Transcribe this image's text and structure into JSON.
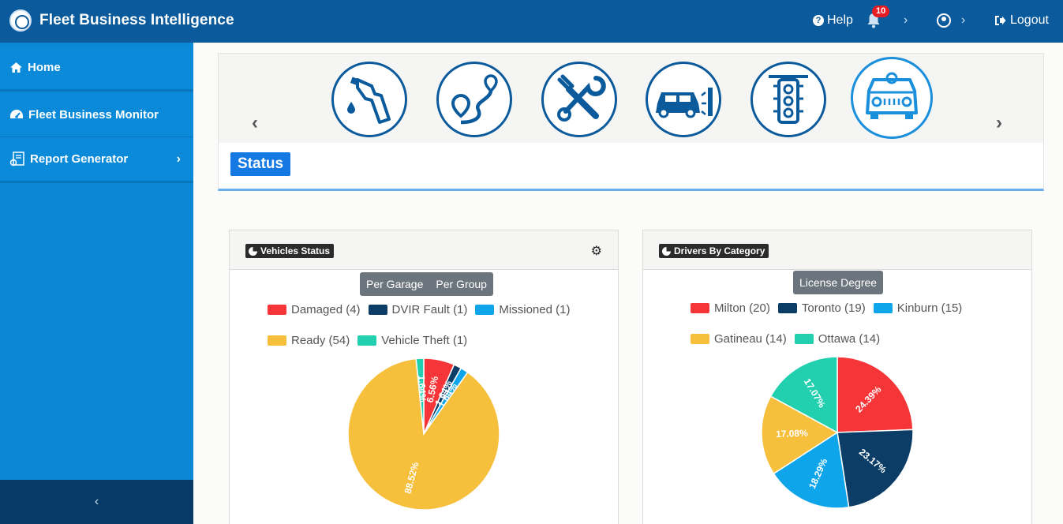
{
  "app": {
    "title": "Fleet Business Intelligence"
  },
  "topbar": {
    "help": "Help",
    "notifications_count": "10",
    "logout": "Logout"
  },
  "sidebar": {
    "items": [
      {
        "label": "Home"
      },
      {
        "label": "Fleet Business Monitor"
      },
      {
        "label": "Report Generator"
      }
    ],
    "collapse_glyph": "‹"
  },
  "carousel": {
    "prev_glyph": "‹",
    "next_glyph": "›",
    "icons": [
      "fuel-pump-icon",
      "route-icon",
      "tools-icon",
      "car-crash-icon",
      "traffic-light-icon",
      "driver-vehicle-icon"
    ],
    "section_label": "Status"
  },
  "vehicles_card": {
    "title": "Vehicles Status",
    "buttons": [
      "Per Garage",
      "Per Group"
    ],
    "legend": [
      {
        "label": "Damaged (4)",
        "color": "#f63538"
      },
      {
        "label": "DVIR Fault (1)",
        "color": "#0b3d66"
      },
      {
        "label": "Missioned (1)",
        "color": "#0ea5ea"
      },
      {
        "label": "Ready (54)",
        "color": "#f6bf3c"
      },
      {
        "label": "Vehicle Theft (1)",
        "color": "#22d0b0"
      }
    ]
  },
  "drivers_card": {
    "title": "Drivers By Category",
    "buttons": [
      "License Degree"
    ],
    "legend": [
      {
        "label": "Milton  (20)",
        "color": "#f63538"
      },
      {
        "label": "Toronto (19)",
        "color": "#0b3d66"
      },
      {
        "label": "Kinburn (15)",
        "color": "#0ea5ea"
      },
      {
        "label": "Gatineau (14)",
        "color": "#f6bf3c"
      },
      {
        "label": "Ottawa (14)",
        "color": "#22d0b0"
      }
    ]
  },
  "chart_data": [
    {
      "type": "pie",
      "categories": [
        "Damaged",
        "DVIR Fault",
        "Missioned",
        "Ready",
        "Vehicle Theft"
      ],
      "values": [
        4,
        1,
        1,
        54,
        1
      ],
      "labels": [
        "6.56%",
        "1.64%",
        "1.64%",
        "88.52%",
        "1.64%"
      ],
      "colors": [
        "#f63538",
        "#0b3d66",
        "#0ea5ea",
        "#f6bf3c",
        "#22d0b0"
      ]
    },
    {
      "type": "pie",
      "categories": [
        "Milton",
        "Toronto",
        "Kinburn",
        "Gatineau",
        "Ottawa"
      ],
      "values": [
        20,
        19,
        15,
        14,
        14
      ],
      "labels": [
        "24.39%",
        "23.17%",
        "18.29%",
        "17.08%",
        "17.07%"
      ],
      "colors": [
        "#f63538",
        "#0b3d66",
        "#0ea5ea",
        "#f6bf3c",
        "#22d0b0"
      ]
    }
  ]
}
